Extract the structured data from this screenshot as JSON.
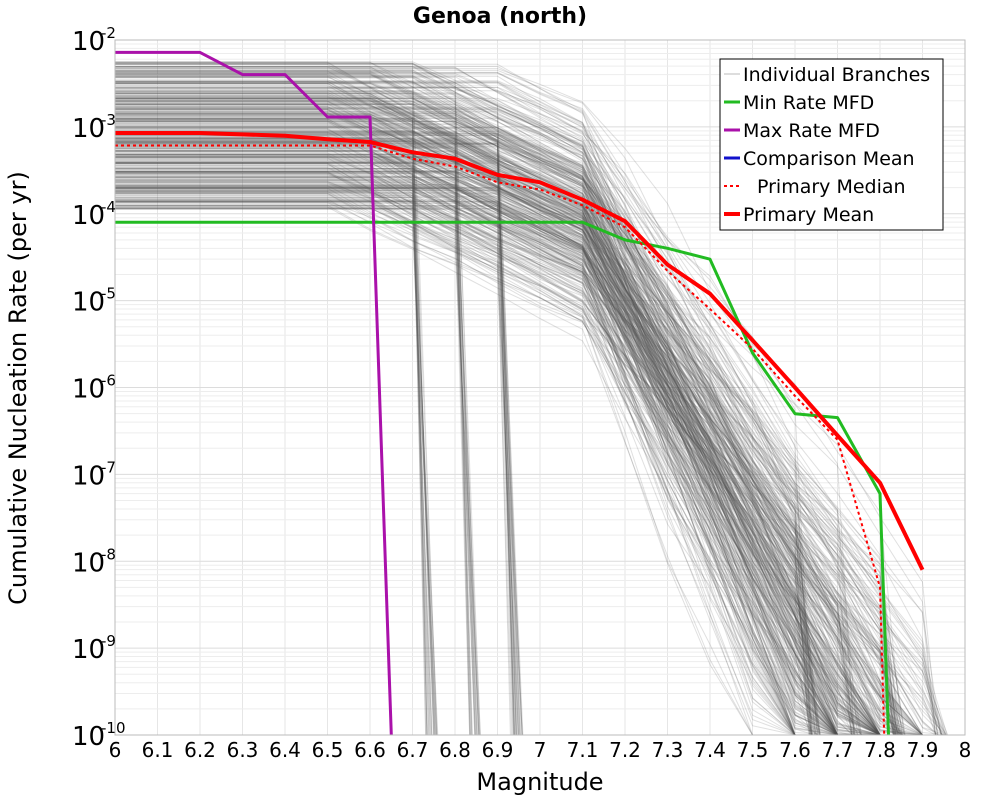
{
  "chart_data": {
    "type": "line",
    "title": "Genoa (north)",
    "xlabel": "Magnitude",
    "ylabel": "Cumulative Nucleation Rate (per yr)",
    "xlim": [
      6,
      8
    ],
    "ylim": [
      1e-10,
      0.01
    ],
    "yscale": "log",
    "grid": true,
    "legend_position": "top-right",
    "x_ticks": [
      "6",
      "6.1",
      "6.2",
      "6.3",
      "6.4",
      "6.5",
      "6.6",
      "6.7",
      "6.8",
      "6.9",
      "7",
      "7.1",
      "7.2",
      "7.3",
      "7.4",
      "7.5",
      "7.6",
      "7.7",
      "7.8",
      "7.9",
      "8"
    ],
    "y_ticks": [
      {
        "base": "10",
        "exp": "-10",
        "value": 1e-10
      },
      {
        "base": "10",
        "exp": "-9",
        "value": 1e-09
      },
      {
        "base": "10",
        "exp": "-8",
        "value": 1e-08
      },
      {
        "base": "10",
        "exp": "-7",
        "value": 1e-07
      },
      {
        "base": "10",
        "exp": "-6",
        "value": 1e-06
      },
      {
        "base": "10",
        "exp": "-5",
        "value": 1e-05
      },
      {
        "base": "10",
        "exp": "-4",
        "value": 0.0001
      },
      {
        "base": "10",
        "exp": "-3",
        "value": 0.001
      },
      {
        "base": "10",
        "exp": "-2",
        "value": 0.01
      }
    ],
    "series": [
      {
        "name": "Individual Branches",
        "color": "#555555",
        "style": "thin-translucent",
        "description_of_spread": "thousands of branch MFDs spanning roughly 1e-4 to 6e-3 at M6.0, truncating at M6.6–M7.9"
      },
      {
        "name": "Min Rate MFD",
        "color": "#22bb22",
        "points": [
          [
            6.0,
            8e-05
          ],
          [
            7.1,
            8e-05
          ],
          [
            7.2,
            5e-05
          ],
          [
            7.3,
            4e-05
          ],
          [
            7.4,
            3e-05
          ],
          [
            7.5,
            2.5e-06
          ],
          [
            7.6,
            5e-07
          ],
          [
            7.7,
            4.5e-07
          ],
          [
            7.8,
            6e-08
          ],
          [
            7.82,
            1e-10
          ]
        ]
      },
      {
        "name": "Max Rate MFD",
        "color": "#aa11aa",
        "points": [
          [
            6.0,
            0.0072
          ],
          [
            6.2,
            0.0072
          ],
          [
            6.3,
            0.004
          ],
          [
            6.4,
            0.004
          ],
          [
            6.5,
            0.0013
          ],
          [
            6.6,
            0.0013
          ],
          [
            6.65,
            1e-10
          ]
        ]
      },
      {
        "name": "Comparison Mean",
        "color": "#1111cc",
        "points": []
      },
      {
        "name": "Primary Median",
        "color": "#ff0000",
        "style": "dotted",
        "points": [
          [
            6.0,
            0.00061
          ],
          [
            6.6,
            0.00061
          ],
          [
            6.7,
            0.00043
          ],
          [
            6.8,
            0.00035
          ],
          [
            6.9,
            0.00023
          ],
          [
            7.0,
            0.00019
          ],
          [
            7.1,
            0.000125
          ],
          [
            7.2,
            7e-05
          ],
          [
            7.3,
            2.2e-05
          ],
          [
            7.4,
            8e-06
          ],
          [
            7.5,
            2.8e-06
          ],
          [
            7.6,
            8e-07
          ],
          [
            7.7,
            2.5e-07
          ],
          [
            7.8,
            5e-09
          ],
          [
            7.81,
            1e-10
          ]
        ]
      },
      {
        "name": "Primary Mean",
        "color": "#ff0000",
        "style": "thick",
        "points": [
          [
            6.0,
            0.00085
          ],
          [
            6.2,
            0.00085
          ],
          [
            6.4,
            0.00079
          ],
          [
            6.5,
            0.00072
          ],
          [
            6.6,
            0.00067
          ],
          [
            6.7,
            0.00051
          ],
          [
            6.8,
            0.00043
          ],
          [
            6.9,
            0.00028
          ],
          [
            7.0,
            0.00023
          ],
          [
            7.1,
            0.000145
          ],
          [
            7.2,
            8.2e-05
          ],
          [
            7.3,
            2.6e-05
          ],
          [
            7.4,
            1.2e-05
          ],
          [
            7.5,
            3.5e-06
          ],
          [
            7.6,
            1e-06
          ],
          [
            7.7,
            2.8e-07
          ],
          [
            7.8,
            8e-08
          ],
          [
            7.9,
            8e-09
          ]
        ]
      }
    ]
  }
}
